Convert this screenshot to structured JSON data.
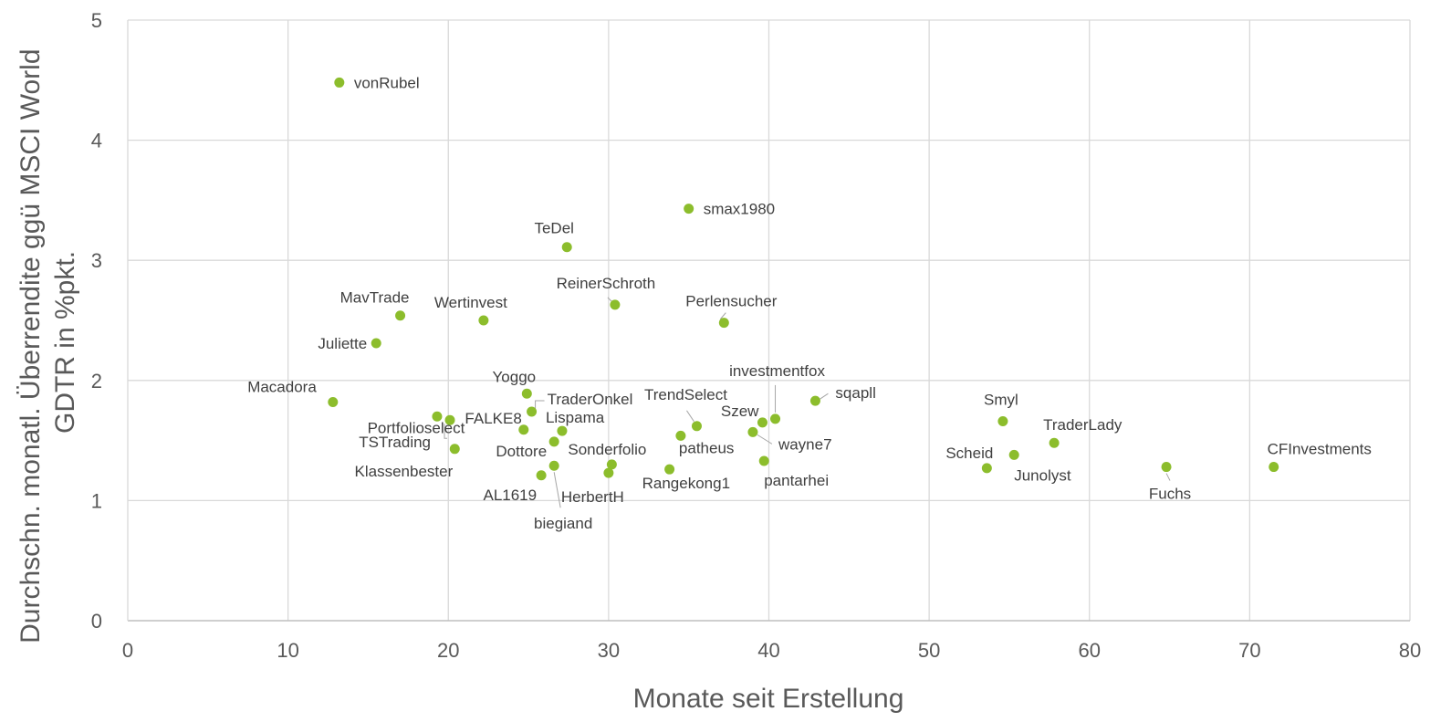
{
  "chart_data": {
    "type": "scatter",
    "title": "",
    "xlabel": "Monate seit Erstellung",
    "ylabel_lines": [
      "Durchschn. monatl. Überrendite ggü MSCI World",
      "GDTR in %pkt."
    ],
    "xlim": [
      0,
      80
    ],
    "ylim": [
      0,
      5
    ],
    "x_ticks": [
      "0",
      "10",
      "20",
      "30",
      "40",
      "50",
      "60",
      "70",
      "80"
    ],
    "y_ticks": [
      "0",
      "1",
      "2",
      "3",
      "4",
      "5"
    ],
    "grid": true,
    "marker_color": "#8cbd2c",
    "points": [
      {
        "label": "vonRubel",
        "x": 13.2,
        "y": 4.48
      },
      {
        "label": "smax1980",
        "x": 35.0,
        "y": 3.43
      },
      {
        "label": "TeDel",
        "x": 27.4,
        "y": 3.11
      },
      {
        "label": "ReinerSchroth",
        "x": 30.4,
        "y": 2.63
      },
      {
        "label": "Perlensucher",
        "x": 37.2,
        "y": 2.48
      },
      {
        "label": "MavTrade",
        "x": 17.0,
        "y": 2.54
      },
      {
        "label": "Wertinvest",
        "x": 22.2,
        "y": 2.5
      },
      {
        "label": "Juliette",
        "x": 15.5,
        "y": 2.31
      },
      {
        "label": "Macadora",
        "x": 12.8,
        "y": 1.82
      },
      {
        "label": "Portfolioselect",
        "x": 19.3,
        "y": 1.7
      },
      {
        "label": "TSTrading",
        "x": 20.1,
        "y": 1.67
      },
      {
        "label": "Klassenbester",
        "x": 20.4,
        "y": 1.43
      },
      {
        "label": "Yoggo",
        "x": 24.9,
        "y": 1.89
      },
      {
        "label": "TraderOnkel",
        "x": 25.2,
        "y": 1.74
      },
      {
        "label": "FALKE8",
        "x": 24.7,
        "y": 1.59
      },
      {
        "label": "Lispama",
        "x": 27.1,
        "y": 1.58
      },
      {
        "label": "Dottore",
        "x": 26.6,
        "y": 1.49
      },
      {
        "label": "Sonderfolio",
        "x": 30.2,
        "y": 1.3
      },
      {
        "label": "AL1619",
        "x": 25.8,
        "y": 1.21
      },
      {
        "label": "HerbertH",
        "x": 30.0,
        "y": 1.23
      },
      {
        "label": "biegiand",
        "x": 26.6,
        "y": 1.29
      },
      {
        "label": "TrendSelect",
        "x": 35.5,
        "y": 1.62
      },
      {
        "label": "patheus",
        "x": 34.5,
        "y": 1.54
      },
      {
        "label": "Rangekong1",
        "x": 33.8,
        "y": 1.26
      },
      {
        "label": "investmentfox",
        "x": 40.4,
        "y": 1.68
      },
      {
        "label": "Szew",
        "x": 39.6,
        "y": 1.65
      },
      {
        "label": "wayne7",
        "x": 39.0,
        "y": 1.57
      },
      {
        "label": "pantarhei",
        "x": 39.7,
        "y": 1.33
      },
      {
        "label": "sqapll",
        "x": 42.9,
        "y": 1.83
      },
      {
        "label": "Smyl",
        "x": 54.6,
        "y": 1.66
      },
      {
        "label": "TraderLady",
        "x": 57.8,
        "y": 1.48
      },
      {
        "label": "Scheid",
        "x": 53.6,
        "y": 1.27
      },
      {
        "label": "Junolyst",
        "x": 55.3,
        "y": 1.38
      },
      {
        "label": "Fuchs",
        "x": 64.8,
        "y": 1.28
      },
      {
        "label": "CFInvestments",
        "x": 71.5,
        "y": 1.28
      }
    ]
  }
}
